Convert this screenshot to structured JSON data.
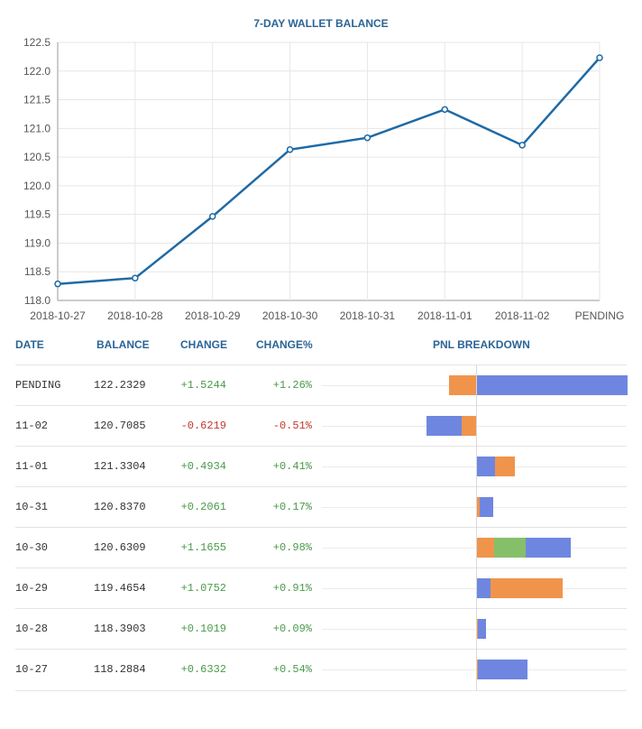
{
  "chart_data": {
    "type": "line",
    "title": "7-DAY WALLET BALANCE",
    "categories": [
      "2018-10-27",
      "2018-10-28",
      "2018-10-29",
      "2018-10-30",
      "2018-10-31",
      "2018-11-01",
      "2018-11-02",
      "PENDING"
    ],
    "values": [
      118.2884,
      118.3903,
      119.4654,
      120.6309,
      120.837,
      121.3304,
      120.7085,
      122.2329
    ],
    "ylim": [
      118.0,
      122.5
    ],
    "yticks": [
      "118.0",
      "118.5",
      "119.0",
      "119.5",
      "120.0",
      "120.5",
      "121.0",
      "121.5",
      "122.0",
      "122.5"
    ],
    "line_color": "#1f6aa5"
  },
  "table": {
    "headers": {
      "date": "DATE",
      "balance": "BALANCE",
      "change": "CHANGE",
      "change_pct": "CHANGE%",
      "pnl": "PNL BREAKDOWN"
    },
    "rows": [
      {
        "date": "PENDING",
        "balance": "122.2329",
        "change": "+1.5244",
        "change_pct": "+1.26%",
        "sign": "pos",
        "pnl": [
          {
            "color": "orange",
            "value": -0.3
          },
          {
            "color": "blue",
            "value": 1.67
          }
        ]
      },
      {
        "date": "11-02",
        "balance": "120.7085",
        "change": "-0.6219",
        "change_pct": "-0.51%",
        "sign": "neg",
        "pnl": [
          {
            "color": "orange",
            "value": -0.16
          },
          {
            "color": "blue",
            "value": -0.39
          }
        ]
      },
      {
        "date": "11-01",
        "balance": "121.3304",
        "change": "+0.4934",
        "change_pct": "+0.41%",
        "sign": "pos",
        "pnl": [
          {
            "color": "blue",
            "value": 0.2
          },
          {
            "color": "orange",
            "value": 0.22
          }
        ]
      },
      {
        "date": "10-31",
        "balance": "120.8370",
        "change": "+0.2061",
        "change_pct": "+0.17%",
        "sign": "pos",
        "pnl": [
          {
            "color": "orange",
            "value": 0.03
          },
          {
            "color": "blue",
            "value": 0.15
          }
        ]
      },
      {
        "date": "10-30",
        "balance": "120.6309",
        "change": "+1.1655",
        "change_pct": "+0.98%",
        "sign": "pos",
        "pnl": [
          {
            "color": "orange",
            "value": 0.19
          },
          {
            "color": "green",
            "value": 0.35
          },
          {
            "color": "blue",
            "value": 0.5
          }
        ]
      },
      {
        "date": "10-29",
        "balance": "119.4654",
        "change": "+1.0752",
        "change_pct": "+0.91%",
        "sign": "pos",
        "pnl": [
          {
            "color": "blue",
            "value": 0.15
          },
          {
            "color": "orange",
            "value": 0.8
          }
        ]
      },
      {
        "date": "10-28",
        "balance": "118.3903",
        "change": "+0.1019",
        "change_pct": "+0.09%",
        "sign": "pos",
        "pnl": [
          {
            "color": "orange",
            "value": 0.01
          },
          {
            "color": "blue",
            "value": 0.09
          }
        ]
      },
      {
        "date": "10-27",
        "balance": "118.2884",
        "change": "+0.6332",
        "change_pct": "+0.54%",
        "sign": "pos",
        "pnl": [
          {
            "color": "orange",
            "value": 0.01
          },
          {
            "color": "blue",
            "value": 0.55
          }
        ]
      }
    ]
  },
  "colors": {
    "blue": "#6f86e0",
    "orange": "#f0944b",
    "green": "#86bf6a",
    "header": "#2a6496"
  }
}
